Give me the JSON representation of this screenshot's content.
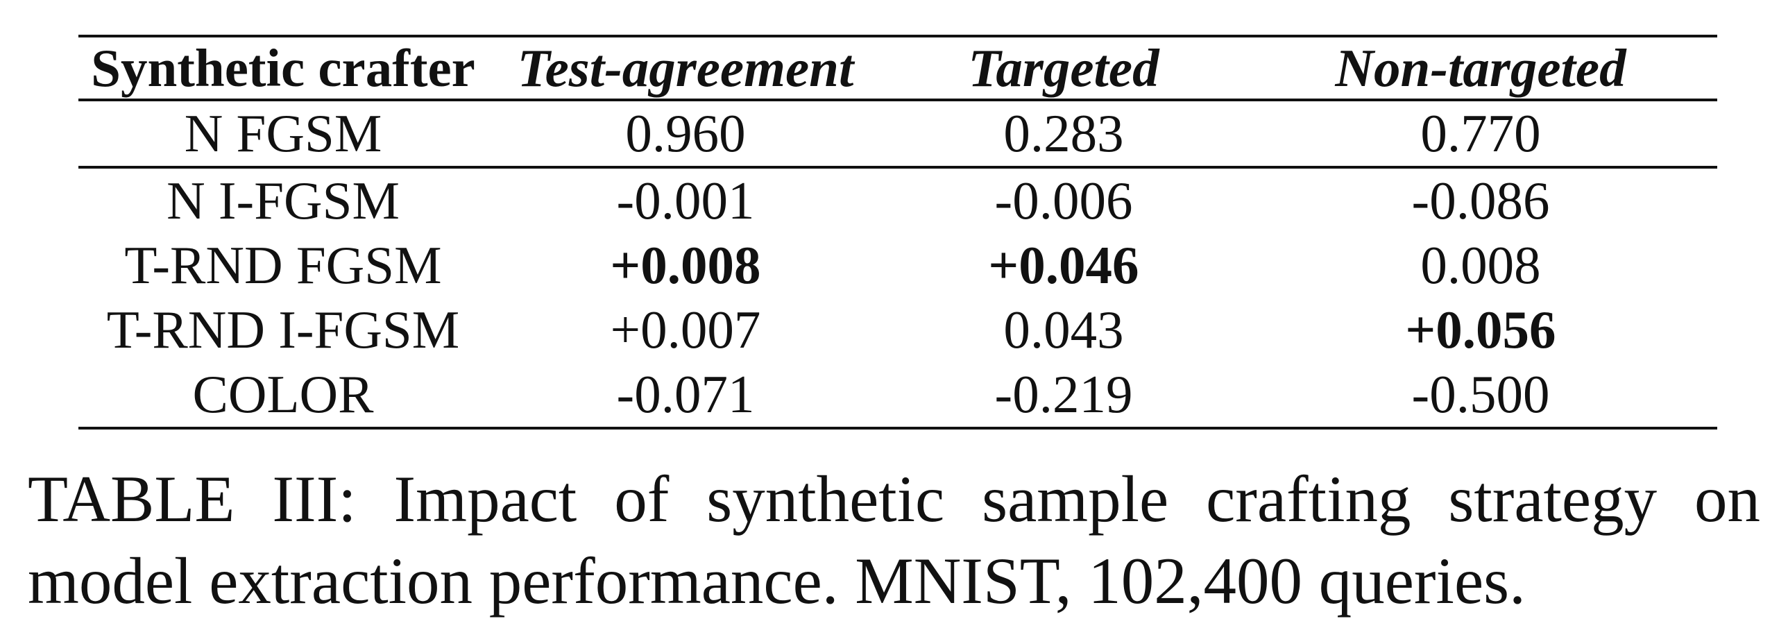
{
  "table": {
    "headers": [
      "Synthetic crafter",
      "Test-agreement",
      "Targeted",
      "Non-targeted"
    ],
    "rows": [
      [
        "N FGSM",
        "0.960",
        "0.283",
        "0.770"
      ],
      [
        "N I-FGSM",
        "-0.001",
        "-0.006",
        "-0.086"
      ],
      [
        "T-RND FGSM",
        "+0.008",
        "+0.046",
        "0.008"
      ],
      [
        "T-RND I-FGSM",
        "+0.007",
        "0.043",
        "+0.056"
      ],
      [
        "COLOR",
        "-0.071",
        "-0.219",
        "-0.500"
      ]
    ]
  },
  "caption": {
    "line1": "TABLE III: Impact of synthetic sample crafting strategy on",
    "line2": "model extraction performance. MNIST, 102,400 queries."
  }
}
